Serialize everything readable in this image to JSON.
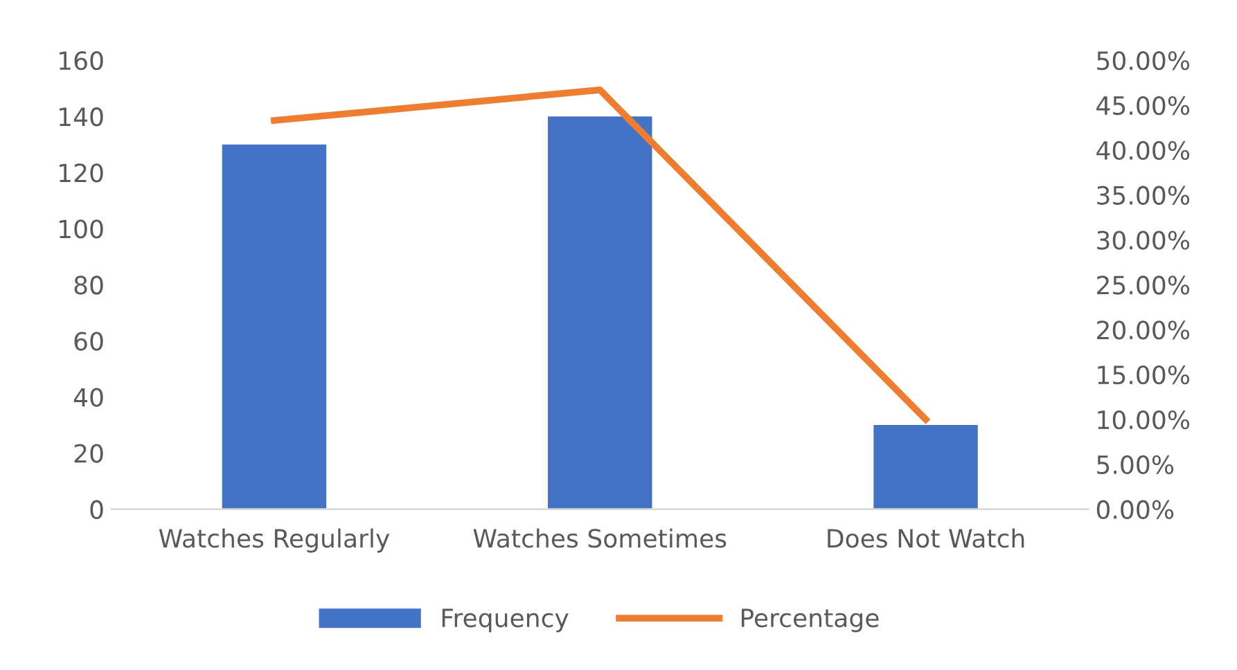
{
  "chart_data": {
    "type": "bar",
    "categories": [
      "Watches Regularly",
      "Watches Sometimes",
      "Does Not Watch"
    ],
    "series": [
      {
        "name": "Frequency",
        "color": "#4472c4",
        "values": [
          130,
          140,
          30
        ]
      },
      {
        "name": "Percentage",
        "type": "line",
        "axis": "y2",
        "color": "#ed7d31",
        "values": [
          43.3,
          46.7,
          10
        ]
      }
    ],
    "ylim": [
      0,
      160
    ],
    "yticks": [
      0,
      20,
      40,
      60,
      80,
      100,
      120,
      140,
      160
    ],
    "y2lim": [
      0,
      50
    ],
    "y2ticks": [
      {
        "value": 0,
        "label": "0.00%"
      },
      {
        "value": 5,
        "label": "5.00%"
      },
      {
        "value": 10,
        "label": "10.00%"
      },
      {
        "value": 15,
        "label": "15.00%"
      },
      {
        "value": 20,
        "label": "20.00%"
      },
      {
        "value": 25,
        "label": "25.00%"
      },
      {
        "value": 30,
        "label": "30.00%"
      },
      {
        "value": 35,
        "label": "35.00%"
      },
      {
        "value": 40,
        "label": "40.00%"
      },
      {
        "value": 45,
        "label": "45.00%"
      },
      {
        "value": 50,
        "label": "50.00%"
      }
    ],
    "grid": false,
    "legend": "bottom",
    "marker": "none"
  }
}
